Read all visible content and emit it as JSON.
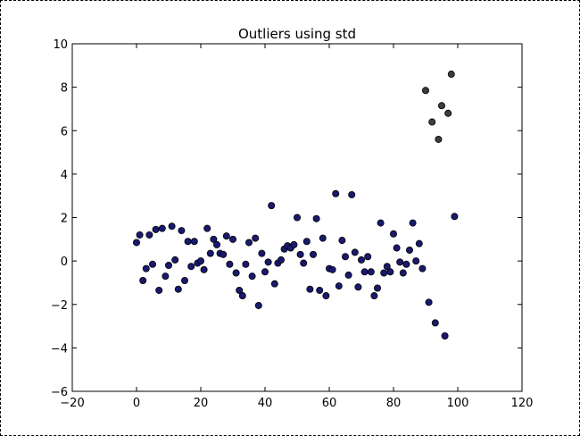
{
  "chart_data": {
    "type": "scatter",
    "title": "Outliers using std",
    "xlabel": "",
    "ylabel": "",
    "xlim": [
      -20,
      120
    ],
    "ylim": [
      -6,
      10
    ],
    "xticks": [
      -20,
      0,
      20,
      40,
      60,
      80,
      100,
      120
    ],
    "yticks": [
      -6,
      -4,
      -2,
      0,
      2,
      4,
      6,
      8,
      10
    ],
    "grid": false,
    "series": [
      {
        "color": "#191970",
        "points": [
          [
            0,
            0.85
          ],
          [
            1,
            1.2
          ],
          [
            2,
            -0.9
          ],
          [
            3,
            -0.35
          ],
          [
            4,
            1.2
          ],
          [
            5,
            -0.15
          ],
          [
            6,
            1.45
          ],
          [
            7,
            -1.35
          ],
          [
            8,
            1.5
          ],
          [
            9,
            -0.7
          ],
          [
            10,
            -0.2
          ],
          [
            11,
            1.6
          ],
          [
            12,
            0.05
          ],
          [
            13,
            -1.3
          ],
          [
            14,
            1.4
          ],
          [
            15,
            -0.9
          ],
          [
            16,
            0.9
          ],
          [
            17,
            -0.25
          ],
          [
            18,
            0.9
          ],
          [
            19,
            -0.1
          ],
          [
            20,
            0.0
          ],
          [
            21,
            -0.4
          ],
          [
            22,
            1.5
          ],
          [
            23,
            0.35
          ],
          [
            24,
            1.0
          ],
          [
            25,
            0.75
          ],
          [
            26,
            0.35
          ],
          [
            27,
            0.3
          ],
          [
            28,
            1.15
          ],
          [
            29,
            -0.15
          ],
          [
            30,
            1.0
          ],
          [
            31,
            -0.55
          ],
          [
            32,
            -1.35
          ],
          [
            33,
            -1.6
          ],
          [
            34,
            -0.15
          ],
          [
            35,
            0.85
          ],
          [
            36,
            -0.7
          ],
          [
            37,
            1.05
          ],
          [
            38,
            -2.05
          ],
          [
            39,
            0.35
          ],
          [
            40,
            -0.5
          ],
          [
            41,
            -0.05
          ],
          [
            42,
            2.55
          ],
          [
            43,
            -1.05
          ],
          [
            44,
            -0.1
          ],
          [
            45,
            0.05
          ],
          [
            46,
            0.55
          ],
          [
            47,
            0.7
          ],
          [
            48,
            0.6
          ],
          [
            49,
            0.75
          ],
          [
            50,
            2.0
          ],
          [
            51,
            0.3
          ],
          [
            52,
            -0.1
          ],
          [
            53,
            0.9
          ],
          [
            54,
            -1.3
          ],
          [
            55,
            0.3
          ],
          [
            56,
            1.95
          ],
          [
            57,
            -1.35
          ],
          [
            58,
            1.05
          ],
          [
            59,
            -1.6
          ],
          [
            60,
            -0.35
          ],
          [
            61,
            -0.4
          ],
          [
            62,
            3.1
          ],
          [
            63,
            -1.15
          ],
          [
            64,
            0.95
          ],
          [
            65,
            0.2
          ],
          [
            66,
            -0.65
          ],
          [
            67,
            3.05
          ],
          [
            68,
            0.4
          ],
          [
            69,
            -1.2
          ],
          [
            70,
            0.05
          ],
          [
            71,
            -0.5
          ],
          [
            72,
            0.2
          ],
          [
            73,
            -0.5
          ],
          [
            74,
            -1.6
          ],
          [
            75,
            -1.25
          ],
          [
            76,
            1.75
          ],
          [
            77,
            -0.55
          ],
          [
            78,
            -0.25
          ],
          [
            79,
            -0.5
          ],
          [
            80,
            1.25
          ],
          [
            81,
            0.6
          ],
          [
            82,
            -0.05
          ],
          [
            83,
            -0.55
          ],
          [
            84,
            -0.15
          ],
          [
            85,
            0.5
          ],
          [
            86,
            1.75
          ],
          [
            87,
            0.0
          ],
          [
            88,
            0.8
          ],
          [
            89,
            -0.35
          ],
          [
            91,
            -1.9
          ],
          [
            93,
            -2.85
          ],
          [
            96,
            -3.45
          ],
          [
            99,
            2.05
          ]
        ]
      },
      {
        "color": "#3c3c3c",
        "points": [
          [
            90,
            7.85
          ],
          [
            92,
            6.4
          ],
          [
            94,
            5.6
          ],
          [
            95,
            7.15
          ],
          [
            97,
            6.8
          ],
          [
            98,
            8.6
          ]
        ]
      }
    ]
  }
}
